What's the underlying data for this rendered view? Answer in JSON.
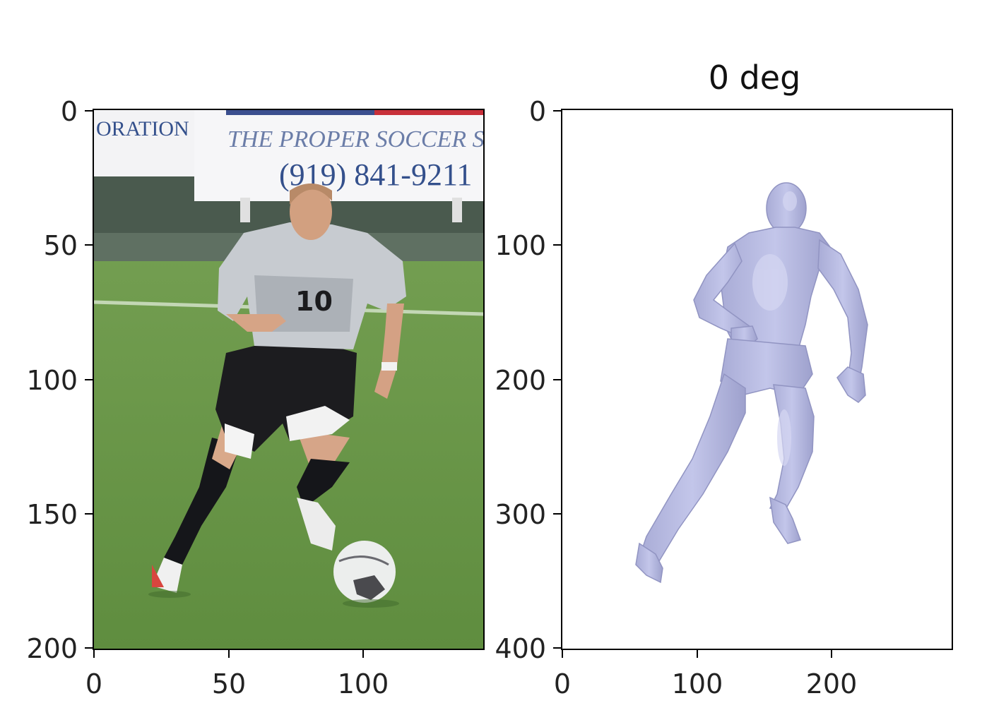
{
  "left_panel": {
    "title": "",
    "x_ticks": [
      "0",
      "50",
      "100"
    ],
    "y_ticks": [
      "0",
      "50",
      "100",
      "150",
      "200"
    ],
    "banner": {
      "left_text": "ORATION",
      "middle_text": "THE PROPER SOCCER S",
      "phone": "(919) 841-9211"
    },
    "jersey_number": "10"
  },
  "right_panel": {
    "title": "0 deg",
    "x_ticks": [
      "0",
      "100",
      "200"
    ],
    "y_ticks": [
      "0",
      "100",
      "200",
      "300",
      "400"
    ],
    "mesh_color": "#b9bce0"
  },
  "colors": {
    "grass": "#6f9b4d",
    "banner": "#f4f4f6",
    "banner_text": "#34508c",
    "jersey": "#c8ccd1",
    "shorts": "#1c1c1f",
    "axis": "#000000"
  }
}
